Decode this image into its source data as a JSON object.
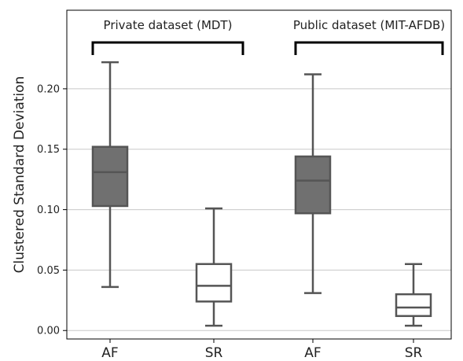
{
  "chart_data": {
    "type": "box",
    "title": "",
    "xlabel": "",
    "ylabel": "Clustered Standard Deviation",
    "ylim": [
      -0.007,
      0.265
    ],
    "yticks": [
      0.0,
      0.05,
      0.1,
      0.15,
      0.2
    ],
    "ytick_labels": [
      "0.00",
      "0.05",
      "0.10",
      "0.15",
      "0.20"
    ],
    "grid": "horizontal",
    "categories": [
      "AF",
      "SR",
      "AF",
      "SR"
    ],
    "groups": [
      {
        "label": "Private dataset (MDT)",
        "members": [
          0,
          1
        ]
      },
      {
        "label": "Public dataset (MIT-AFDB)",
        "members": [
          2,
          3
        ]
      }
    ],
    "boxes": [
      {
        "category": "AF",
        "whisker_low": 0.036,
        "q1": 0.103,
        "median": 0.131,
        "q3": 0.152,
        "whisker_high": 0.222,
        "fill": "#707070"
      },
      {
        "category": "SR",
        "whisker_low": 0.004,
        "q1": 0.024,
        "median": 0.037,
        "q3": 0.055,
        "whisker_high": 0.101,
        "fill": "#ffffff"
      },
      {
        "category": "AF",
        "whisker_low": 0.031,
        "q1": 0.097,
        "median": 0.124,
        "q3": 0.144,
        "whisker_high": 0.212,
        "fill": "#707070"
      },
      {
        "category": "SR",
        "whisker_low": 0.004,
        "q1": 0.012,
        "median": 0.019,
        "q3": 0.03,
        "whisker_high": 0.055,
        "fill": "#ffffff"
      }
    ],
    "colors": {
      "stroke": "#555555",
      "grid": "#c8c8c8",
      "axis": "#000000",
      "bracket": "#000000"
    }
  }
}
